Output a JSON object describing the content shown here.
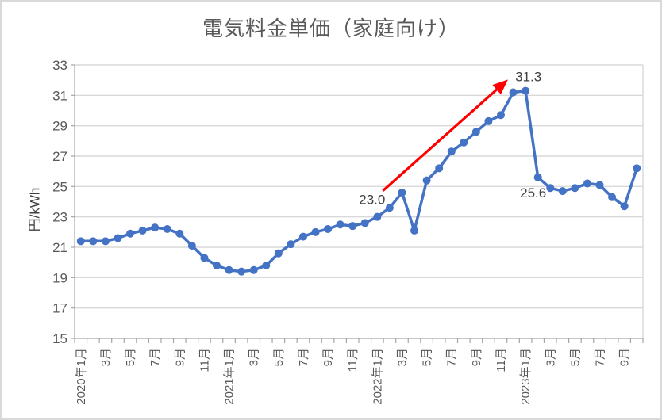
{
  "chart_data": {
    "type": "line",
    "title": "電気料金単価（家庭向け）",
    "ylabel": "円/kWh",
    "xlabel": "",
    "ylim": [
      15,
      33
    ],
    "y_tick_step": 2,
    "y_tick_labels": [
      "15",
      "17",
      "19",
      "21",
      "23",
      "25",
      "27",
      "29",
      "31",
      "33"
    ],
    "grid": "horizontal",
    "legend_position": "none",
    "categories": [
      "2020年1月",
      "2020年2月",
      "2020年3月",
      "2020年4月",
      "2020年5月",
      "2020年6月",
      "2020年7月",
      "2020年8月",
      "2020年9月",
      "2020年10月",
      "2020年11月",
      "2020年12月",
      "2021年1月",
      "2021年2月",
      "2021年3月",
      "2021年4月",
      "2021年5月",
      "2021年6月",
      "2021年7月",
      "2021年8月",
      "2021年9月",
      "2021年10月",
      "2021年11月",
      "2021年12月",
      "2022年1月",
      "2022年2月",
      "2022年3月",
      "2022年4月",
      "2022年5月",
      "2022年6月",
      "2022年7月",
      "2022年8月",
      "2022年9月",
      "2022年10月",
      "2022年11月",
      "2022年12月",
      "2023年1月",
      "2023年2月",
      "2023年3月",
      "2023年4月",
      "2023年5月",
      "2023年6月",
      "2023年7月",
      "2023年8月",
      "2023年9月",
      "2023年10月"
    ],
    "series": [
      {
        "name": "電気料金単価（家庭向け）",
        "values": [
          21.4,
          21.4,
          21.4,
          21.6,
          21.9,
          22.1,
          22.3,
          22.2,
          21.9,
          21.1,
          20.3,
          19.8,
          19.5,
          19.4,
          19.5,
          19.8,
          20.6,
          21.2,
          21.7,
          22.0,
          22.2,
          22.5,
          22.4,
          22.6,
          23.0,
          23.6,
          24.6,
          22.1,
          25.4,
          26.2,
          27.3,
          27.9,
          28.6,
          29.3,
          29.7,
          31.2,
          31.3,
          25.6,
          24.9,
          24.7,
          24.9,
          25.2,
          25.1,
          24.3,
          23.7,
          26.2
        ]
      }
    ],
    "x_tick_labels_shown": [
      "2020年1月",
      "3月",
      "5月",
      "7月",
      "9月",
      "11月",
      "2021年1月",
      "3月",
      "5月",
      "7月",
      "9月",
      "11月",
      "2022年1月",
      "3月",
      "5月",
      "7月",
      "9月",
      "11月",
      "2023年1月",
      "3月",
      "5月",
      "7月",
      "9月"
    ],
    "annotations": [
      {
        "text": "23.0",
        "attached_to": "2022年1月",
        "value": 23.0
      },
      {
        "text": "31.3",
        "attached_to": "2023年1月",
        "value": 31.3
      },
      {
        "text": "25.6",
        "attached_to": "2023年2月",
        "value": 25.6
      }
    ],
    "arrow": {
      "from": "2022年1月",
      "to": "2022年12月",
      "color": "#FF0000"
    },
    "colors": {
      "line": "#4472C4",
      "marker": "#4472C4",
      "arrow": "#FF0000",
      "grid": "#D9D9D9",
      "axis": "#A6A6A6",
      "axis_text": "#595959",
      "annotation_text": "#404040",
      "border": "#D9D9D9",
      "background": "#FFFFFF"
    }
  }
}
